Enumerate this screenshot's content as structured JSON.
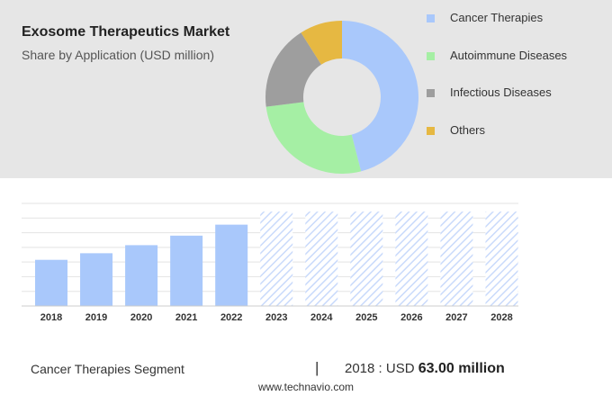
{
  "header": {
    "title": "Exosome Therapeutics Market",
    "subtitle": "Share by Application (USD million)"
  },
  "colors": {
    "cancer": "#a9c8fb",
    "autoimmune": "#a5efa4",
    "infectious": "#9e9e9e",
    "others": "#e6b842",
    "bar": "#a9c8fb",
    "hatch": "#c9dafb"
  },
  "chart_data": [
    {
      "type": "pie",
      "subtype": "donut",
      "labels": [
        "Cancer Therapies",
        "Autoimmune Diseases",
        "Infectious Diseases",
        "Others"
      ],
      "values": [
        46,
        27,
        18,
        9
      ],
      "legend_position": "right"
    },
    {
      "type": "bar",
      "categories": [
        "2018",
        "2019",
        "2020",
        "2021",
        "2022",
        "2023",
        "2024",
        "2025",
        "2026",
        "2027",
        "2028"
      ],
      "series": [
        {
          "values": [
            63.0,
            72.0,
            83.0,
            96.0,
            111.0,
            null,
            null,
            null,
            null,
            null,
            null
          ]
        }
      ],
      "forecast_categories": [
        "2023",
        "2024",
        "2025",
        "2026",
        "2027",
        "2028"
      ],
      "ylim": [
        0,
        140
      ],
      "grid": true,
      "axis_labels_shown": false
    }
  ],
  "footer": {
    "segment": "Cancer Therapies Segment",
    "separator": "|",
    "year_label": "2018 : USD",
    "amount": "63.00 million",
    "url": "www.technavio.com"
  }
}
